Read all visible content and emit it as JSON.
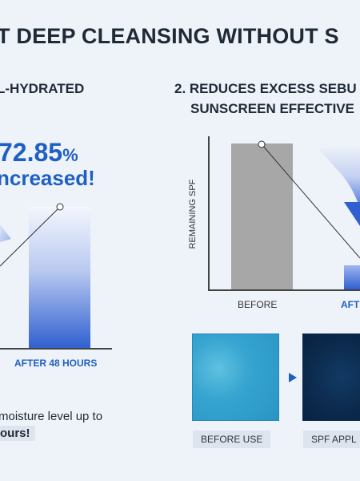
{
  "header": {
    "title": "T DEEP CLEANSING WITHOUT S"
  },
  "left_section": {
    "heading": "L-HYDRATED",
    "percent_value": "72.85",
    "percent_sign": "%",
    "increased_text": "ncreased!",
    "bar_label": "AFTER 48 HOURS",
    "moisture_line1": "moisture level up to",
    "moisture_line2": "ours!"
  },
  "right_section": {
    "heading_line1": "2. REDUCES EXCESS SEBU",
    "heading_line2": "SUNSCREEN EFFECTIVE",
    "y_axis_label": "REMAINING SPF",
    "before_label": "BEFORE",
    "after_label": "AFT",
    "before_use_label": "BEFORE USE",
    "spf_applied_label": "SPF APPL"
  },
  "colors": {
    "accent_blue": "#1f5fc4",
    "bar_gray": "#a7a7a7",
    "background": "#eef3f9"
  }
}
